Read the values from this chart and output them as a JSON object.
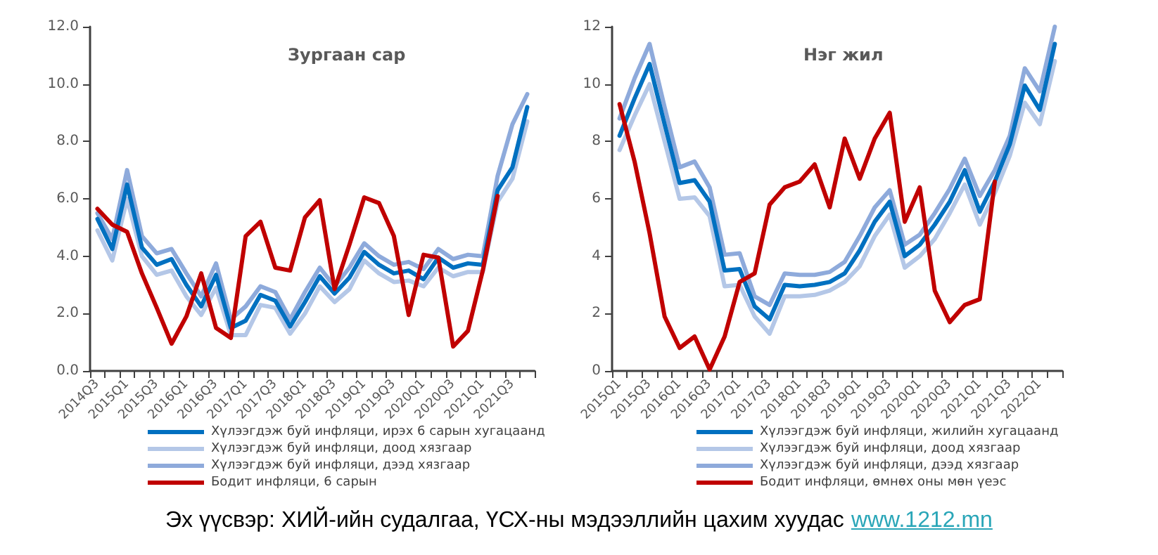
{
  "chart_data": [
    {
      "type": "line",
      "title": "Зургаан сар",
      "categories": [
        "2014Q3",
        null,
        "2015Q1",
        null,
        "2015Q3",
        null,
        "2016Q1",
        null,
        "2016Q3",
        null,
        "2017Q1",
        null,
        "2017Q3",
        null,
        "2018Q1",
        null,
        "2018Q3",
        null,
        "2019Q1",
        null,
        "2019Q3",
        null,
        "2020Q1",
        null,
        "2020Q3",
        null,
        "2021Q1",
        null,
        "2021Q3",
        null
      ],
      "series": [
        {
          "name": "Хүлээгдэж буй инфляци, ирэх 6 сарын хугацаанд",
          "color": "#0070c0",
          "values": [
            5.3,
            4.25,
            6.5,
            4.3,
            3.7,
            3.9,
            3.0,
            2.25,
            3.35,
            1.5,
            1.75,
            2.65,
            2.45,
            1.55,
            2.4,
            3.3,
            2.7,
            3.25,
            4.15,
            3.7,
            3.4,
            3.5,
            3.2,
            3.95,
            3.6,
            3.75,
            3.7,
            6.3,
            7.1,
            9.2
          ]
        },
        {
          "name": "Хүлээгдэж буй инфляци, доод хязгаар",
          "color": "#b4c7e7",
          "values": [
            4.9,
            3.85,
            6.0,
            4.0,
            3.35,
            3.5,
            2.6,
            1.95,
            2.9,
            1.25,
            1.25,
            2.3,
            2.2,
            1.3,
            2.0,
            2.95,
            2.4,
            2.85,
            3.85,
            3.4,
            3.1,
            3.15,
            2.95,
            3.6,
            3.3,
            3.45,
            3.45,
            5.9,
            6.7,
            8.7
          ]
        },
        {
          "name": "Хүлээгдэж буй инфляци, дээд хязгаар",
          "color": "#8eaadb",
          "values": [
            5.5,
            4.6,
            7.0,
            4.7,
            4.1,
            4.25,
            3.4,
            2.6,
            3.75,
            1.8,
            2.25,
            2.95,
            2.75,
            1.8,
            2.75,
            3.6,
            2.95,
            3.6,
            4.45,
            4.0,
            3.7,
            3.8,
            3.55,
            4.25,
            3.9,
            4.05,
            4.0,
            6.8,
            8.6,
            9.65
          ]
        },
        {
          "name": "Бодит инфляци, 6 сарын",
          "color": "#c00000",
          "values": [
            5.65,
            5.1,
            4.85,
            3.4,
            2.2,
            0.95,
            1.9,
            3.4,
            1.5,
            1.15,
            4.7,
            5.2,
            3.6,
            3.5,
            5.35,
            5.95,
            2.85,
            4.4,
            6.05,
            5.85,
            4.7,
            1.95,
            4.05,
            3.95,
            0.85,
            1.4,
            3.5,
            6.1,
            null,
            null
          ]
        }
      ],
      "ylim": [
        0,
        12
      ],
      "yticks": [
        {
          "value": 0,
          "label": "0.0"
        },
        {
          "value": 2,
          "label": "2.0"
        },
        {
          "value": 4,
          "label": "4.0"
        },
        {
          "value": 6,
          "label": "6.0"
        },
        {
          "value": 8,
          "label": "8.0"
        },
        {
          "value": 10,
          "label": "10.0"
        },
        {
          "value": 12,
          "label": "12.0"
        }
      ],
      "grid": false,
      "legend": "bottom",
      "marker": "none",
      "line_style": "solid",
      "annotations": [
        "Эх үүсвэр: ХИЙ-ийн судалгаа, ҮСХ-ны мэдээллийн цахим хуудас",
        "www.1212.mn"
      ]
    },
    {
      "type": "line",
      "title": "Нэг жил",
      "categories": [
        "2015Q1",
        null,
        "2015Q3",
        null,
        "2016Q1",
        null,
        "2016Q3",
        null,
        "2017Q1",
        null,
        "2017Q3",
        null,
        "2018Q1",
        null,
        "2018Q3",
        null,
        "2019Q1",
        null,
        "2019Q3",
        null,
        "2020Q1",
        null,
        "2020Q3",
        null,
        "2021Q1",
        null,
        "2021Q3",
        null,
        "2022Q1",
        null
      ],
      "series": [
        {
          "name": "Хүлээгдэж буй инфляци, жилийн хугацаанд",
          "color": "#0070c0",
          "values": [
            8.2,
            9.5,
            10.7,
            8.6,
            6.55,
            6.65,
            5.9,
            3.5,
            3.55,
            2.25,
            1.8,
            3.0,
            2.95,
            3.0,
            3.1,
            3.4,
            4.2,
            5.2,
            5.9,
            4.0,
            4.4,
            5.1,
            5.9,
            7.0,
            5.55,
            6.6,
            7.9,
            9.95,
            9.1,
            11.4
          ]
        },
        {
          "name": "Хүлээгдэж буй инфляци, доод хязгаар",
          "color": "#b4c7e7",
          "values": [
            7.7,
            8.9,
            10.0,
            8.0,
            6.0,
            6.05,
            5.4,
            2.95,
            3.0,
            1.9,
            1.3,
            2.6,
            2.6,
            2.65,
            2.8,
            3.1,
            3.65,
            4.7,
            5.45,
            3.6,
            4.0,
            4.6,
            5.5,
            6.5,
            5.1,
            6.2,
            7.5,
            9.35,
            8.6,
            10.8
          ]
        },
        {
          "name": "Хүлээгдэж буй инфляци, дээд хязгаар",
          "color": "#8eaadb",
          "values": [
            8.8,
            10.2,
            11.4,
            9.2,
            7.1,
            7.3,
            6.4,
            4.05,
            4.1,
            2.6,
            2.3,
            3.4,
            3.35,
            3.35,
            3.45,
            3.8,
            4.7,
            5.7,
            6.3,
            4.4,
            4.75,
            5.5,
            6.35,
            7.4,
            6.1,
            7.0,
            8.2,
            10.55,
            9.75,
            12.0
          ]
        },
        {
          "name": "Бодит инфляци, өмнөх оны мөн үеэс",
          "color": "#c00000",
          "values": [
            9.3,
            7.3,
            4.8,
            1.9,
            0.8,
            1.2,
            0.05,
            1.2,
            3.1,
            3.4,
            5.8,
            6.4,
            6.6,
            7.2,
            5.7,
            8.1,
            6.7,
            8.1,
            9.0,
            5.2,
            6.4,
            2.8,
            1.7,
            2.3,
            2.5,
            6.6,
            null,
            null,
            null,
            null
          ]
        }
      ],
      "ylim": [
        0,
        12
      ],
      "yticks": [
        0,
        2,
        4,
        6,
        8,
        10,
        12
      ],
      "grid": false,
      "legend": "bottom",
      "marker": "none",
      "line_style": "solid"
    }
  ]
}
